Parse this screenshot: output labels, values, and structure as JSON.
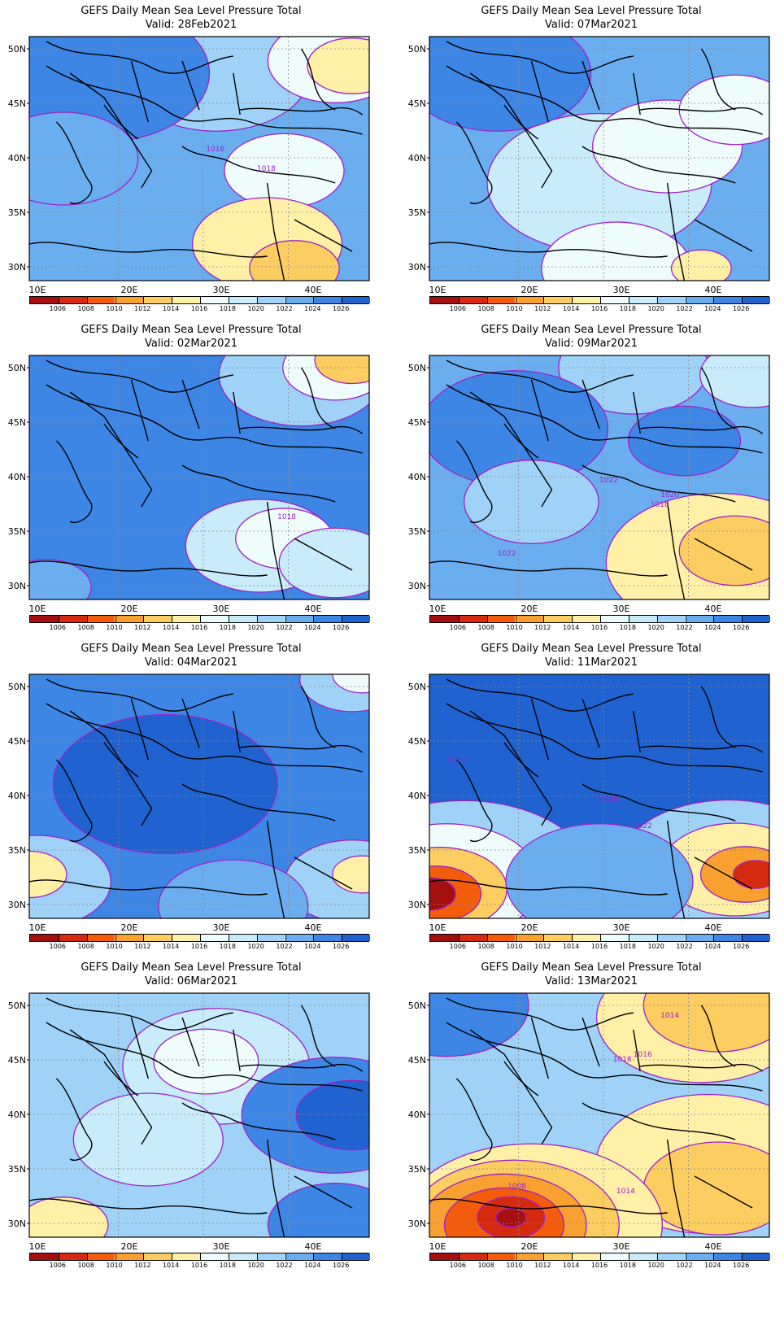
{
  "panels": [
    {
      "title": "GEFS Daily Mean Sea Level Pressure Total",
      "valid": "Valid: 28Feb2021",
      "labels": [
        "1018",
        "1016"
      ]
    },
    {
      "title": "GEFS Daily Mean Sea Level Pressure Total",
      "valid": "Valid: 07Mar2021",
      "labels": []
    },
    {
      "title": "GEFS Daily Mean Sea Level Pressure Total",
      "valid": "Valid: 02Mar2021",
      "labels": [
        "1018"
      ]
    },
    {
      "title": "GEFS Daily Mean Sea Level Pressure Total",
      "valid": "Valid: 09Mar2021",
      "labels": [
        "1022",
        "1020",
        "1018",
        "1022"
      ]
    },
    {
      "title": "GEFS Daily Mean Sea Level Pressure Total",
      "valid": "Valid: 04Mar2021",
      "labels": []
    },
    {
      "title": "GEFS Daily Mean Sea Level Pressure Total",
      "valid": "Valid: 11Mar2021",
      "labels": [
        "1026",
        "1026",
        "1022"
      ]
    },
    {
      "title": "GEFS Daily Mean Sea Level Pressure Total",
      "valid": "Valid: 06Mar2021",
      "labels": []
    },
    {
      "title": "GEFS Daily Mean Sea Level Pressure Total",
      "valid": "Valid: 13Mar2021",
      "labels": [
        "1014",
        "1016",
        "1018",
        "1014",
        "1008"
      ]
    }
  ],
  "lat_labels": [
    "50N",
    "45N",
    "40N",
    "35N",
    "30N"
  ],
  "lon_labels": [
    "10E",
    "20E",
    "30E",
    "40E"
  ],
  "colorbar": {
    "ticks": [
      "1006",
      "1008",
      "1010",
      "1012",
      "1014",
      "1016",
      "1018",
      "1020",
      "1022",
      "1024",
      "1026"
    ],
    "colors": [
      "#a50f0f",
      "#d52a10",
      "#f25c0a",
      "#f8a030",
      "#fccd60",
      "#fff0a8",
      "#eefcfc",
      "#c8ecfa",
      "#9fd2f6",
      "#6aaef0",
      "#3d86e6",
      "#2062d0"
    ]
  },
  "contour_color": "#a020c8"
}
